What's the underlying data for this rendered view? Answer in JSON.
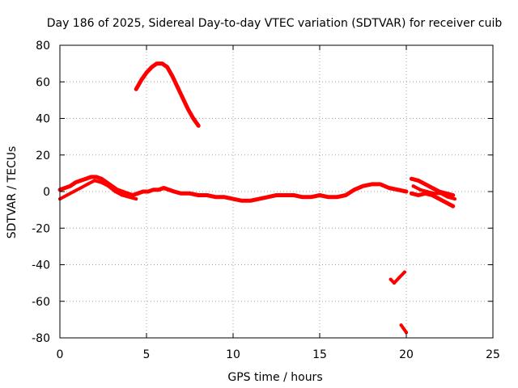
{
  "chart_data": {
    "type": "line",
    "title": "Day 186 of 2025, Sidereal Day-to-day VTEC variation (SDTVAR) for receiver cuib",
    "xlabel": "GPS time / hours",
    "ylabel": "SDTVAR / TECUs",
    "xlim": [
      0,
      25
    ],
    "ylim": [
      -80,
      80
    ],
    "xticks": [
      0,
      5,
      10,
      15,
      20,
      25
    ],
    "yticks": [
      -80,
      -60,
      -40,
      -20,
      0,
      20,
      40,
      60,
      80
    ],
    "grid": true,
    "series_color": "#ff0000",
    "series": [
      {
        "name": "main-band",
        "width": 5,
        "x": [
          0.0,
          0.3,
          0.6,
          0.9,
          1.2,
          1.5,
          1.8,
          2.1,
          2.4,
          2.7,
          3.0,
          3.3,
          3.6,
          3.9,
          4.2,
          4.5,
          4.8,
          5.1,
          5.4,
          5.7,
          6.0,
          6.3,
          6.6,
          7.0,
          7.5,
          8.0,
          8.5,
          9.0,
          9.5,
          10.0,
          10.5,
          11.0,
          11.5,
          12.0,
          12.5,
          13.0,
          13.5,
          14.0,
          14.5,
          15.0,
          15.5,
          16.0,
          16.5,
          17.0,
          17.5,
          18.0,
          18.5,
          19.0,
          19.5,
          20.0
        ],
        "y": [
          1,
          2,
          3,
          5,
          6,
          7,
          8,
          8,
          7,
          5,
          3,
          1,
          0,
          -1,
          -2,
          -1,
          0,
          0,
          1,
          1,
          2,
          1,
          0,
          -1,
          -1,
          -2,
          -2,
          -3,
          -3,
          -4,
          -5,
          -5,
          -4,
          -3,
          -2,
          -2,
          -2,
          -3,
          -3,
          -2,
          -3,
          -3,
          -2,
          1,
          3,
          4,
          4,
          2,
          1,
          0
        ]
      },
      {
        "name": "main-band-lower",
        "width": 4,
        "x": [
          0.0,
          0.4,
          0.8,
          1.2,
          1.6,
          2.0,
          2.4,
          2.8,
          3.2,
          3.6,
          4.0,
          4.4
        ],
        "y": [
          -4,
          -2,
          0,
          2,
          4,
          6,
          5,
          3,
          0,
          -2,
          -3,
          -4
        ]
      },
      {
        "name": "arc",
        "width": 5,
        "x": [
          4.4,
          4.7,
          5.0,
          5.3,
          5.6,
          5.9,
          6.2,
          6.5,
          6.8,
          7.1,
          7.4,
          7.7,
          8.0
        ],
        "y": [
          56,
          61,
          65,
          68,
          70,
          70,
          68,
          63,
          57,
          51,
          45,
          40,
          36
        ]
      },
      {
        "name": "late-band-upper",
        "width": 5,
        "x": [
          20.3,
          20.7,
          21.1,
          21.5,
          21.9,
          22.3,
          22.7
        ],
        "y": [
          7,
          6,
          4,
          2,
          0,
          -1,
          -2
        ]
      },
      {
        "name": "late-band-lower",
        "width": 5,
        "x": [
          20.3,
          20.7,
          21.1,
          21.5,
          21.9,
          22.3,
          22.7
        ],
        "y": [
          -1,
          -2,
          -1,
          -2,
          -4,
          -6,
          -8
        ]
      },
      {
        "name": "late-band-mid",
        "width": 4,
        "x": [
          20.4,
          20.8,
          21.2,
          21.6,
          22.0,
          22.4,
          22.8
        ],
        "y": [
          3,
          1,
          0,
          -1,
          -1,
          -3,
          -4
        ]
      },
      {
        "name": "check-segment",
        "width": 4,
        "x": [
          19.1,
          19.3,
          19.6,
          19.9
        ],
        "y": [
          -48,
          -50,
          -47,
          -44
        ]
      },
      {
        "name": "short-segment",
        "width": 4,
        "x": [
          19.7,
          19.85,
          20.0
        ],
        "y": [
          -73,
          -75,
          -77
        ]
      }
    ]
  }
}
